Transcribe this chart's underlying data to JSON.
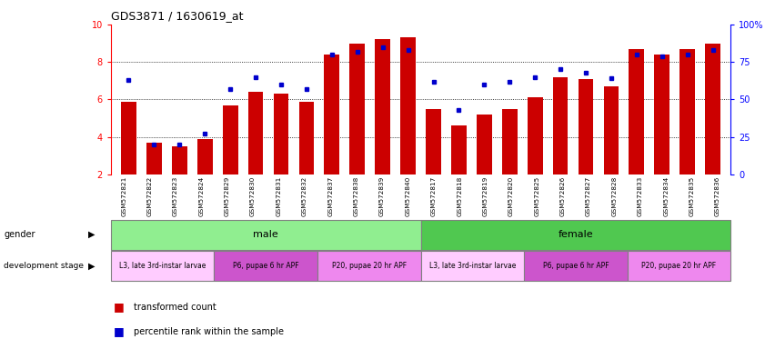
{
  "title": "GDS3871 / 1630619_at",
  "samples": [
    "GSM572821",
    "GSM572822",
    "GSM572823",
    "GSM572824",
    "GSM572829",
    "GSM572830",
    "GSM572831",
    "GSM572832",
    "GSM572837",
    "GSM572838",
    "GSM572839",
    "GSM572840",
    "GSM572817",
    "GSM572818",
    "GSM572819",
    "GSM572820",
    "GSM572825",
    "GSM572826",
    "GSM572827",
    "GSM572828",
    "GSM572833",
    "GSM572834",
    "GSM572835",
    "GSM572836"
  ],
  "transformed_count": [
    5.9,
    3.7,
    3.5,
    3.9,
    5.7,
    6.4,
    6.3,
    5.9,
    8.4,
    9.0,
    9.2,
    9.3,
    5.5,
    4.6,
    5.2,
    5.5,
    6.1,
    7.2,
    7.1,
    6.7,
    8.7,
    8.4,
    8.7,
    9.0
  ],
  "percentile": [
    63,
    20,
    20,
    27,
    57,
    65,
    60,
    57,
    80,
    82,
    85,
    83,
    62,
    43,
    60,
    62,
    65,
    70,
    68,
    64,
    80,
    79,
    80,
    83
  ],
  "bar_color": "#cc0000",
  "percentile_color": "#0000cc",
  "gender_male_color": "#90ee90",
  "gender_female_color": "#50c850",
  "dev_stage_light": "#ffccff",
  "dev_stage_mid": "#dd55dd",
  "dev_stage_bright": "#ee88ee",
  "gender_groups": [
    {
      "label": "male",
      "start": 0,
      "end": 11
    },
    {
      "label": "female",
      "start": 12,
      "end": 23
    }
  ],
  "dev_stage_groups": [
    {
      "label": "L3, late 3rd-instar larvae",
      "start": 0,
      "end": 3,
      "color": "#ffccff"
    },
    {
      "label": "P6, pupae 6 hr APF",
      "start": 4,
      "end": 7,
      "color": "#cc55cc"
    },
    {
      "label": "P20, pupae 20 hr APF",
      "start": 8,
      "end": 11,
      "color": "#ee88ee"
    },
    {
      "label": "L3, late 3rd-instar larvae",
      "start": 12,
      "end": 15,
      "color": "#ffccff"
    },
    {
      "label": "P6, pupae 6 hr APF",
      "start": 16,
      "end": 19,
      "color": "#cc55cc"
    },
    {
      "label": "P20, pupae 20 hr APF",
      "start": 20,
      "end": 23,
      "color": "#ee88ee"
    }
  ],
  "ylim_left": [
    2,
    10
  ],
  "ylim_right": [
    0,
    100
  ],
  "yticks_left": [
    2,
    4,
    6,
    8,
    10
  ],
  "yticks_right": [
    0,
    25,
    50,
    75,
    100
  ],
  "grid_values": [
    4,
    6,
    8
  ],
  "chart_bg": "#ffffff"
}
